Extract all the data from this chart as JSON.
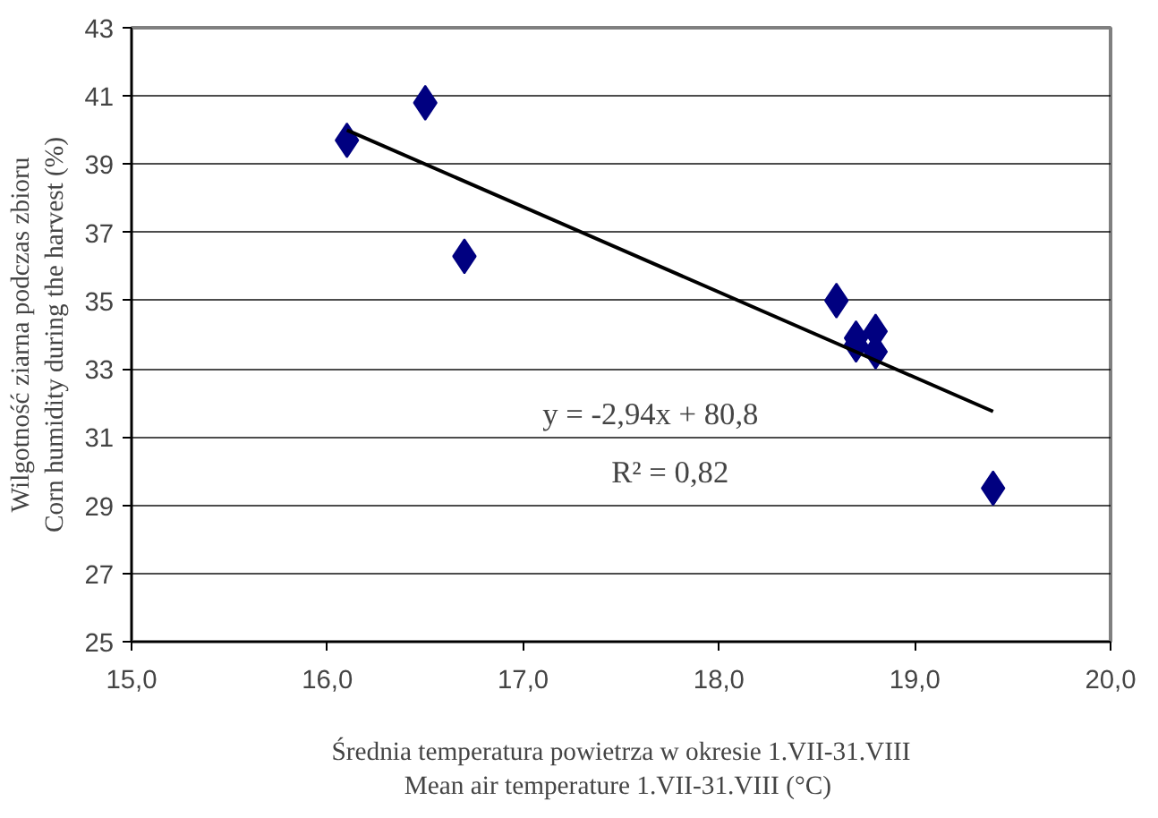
{
  "chart_data": {
    "type": "scatter",
    "xlabel": "Średnia temperatura powietrza w okresie 1.VII-31.VIII\nMean air temperature 1.VII-31.VIII  (°C)",
    "ylabel": "Wilgotność ziarna podczas zbioru\nCorn humidity during the harvest (%)",
    "marker": "diamond",
    "grid": "y",
    "xlim": [
      15,
      20
    ],
    "xticks": [
      {
        "value": 15,
        "label": "15,0"
      },
      {
        "value": 16,
        "label": "16,0"
      },
      {
        "value": 17,
        "label": "17,0"
      },
      {
        "value": 18,
        "label": "18,0"
      },
      {
        "value": 19,
        "label": "19,0"
      },
      {
        "value": 20,
        "label": "20,0"
      }
    ],
    "ylim": [
      25,
      43
    ],
    "yticks": [
      25,
      27,
      29,
      31,
      33,
      35,
      37,
      39,
      41,
      43
    ],
    "annotations": [
      "y = -2,94x + 80,8",
      "R² = 0,82"
    ],
    "series": [
      {
        "color": "#000080",
        "x": [
          16.1,
          16.5,
          16.7,
          18.6,
          18.7,
          18.7,
          18.8,
          18.8,
          19.4
        ],
        "values": [
          39.7,
          40.8,
          36.3,
          35.0,
          33.9,
          33.7,
          34.1,
          33.5,
          29.5
        ]
      },
      {
        "type": "line",
        "color": "#000000",
        "marker": "none",
        "x": [
          16.1,
          19.4
        ],
        "values": [
          40.0,
          31.75
        ]
      }
    ]
  }
}
